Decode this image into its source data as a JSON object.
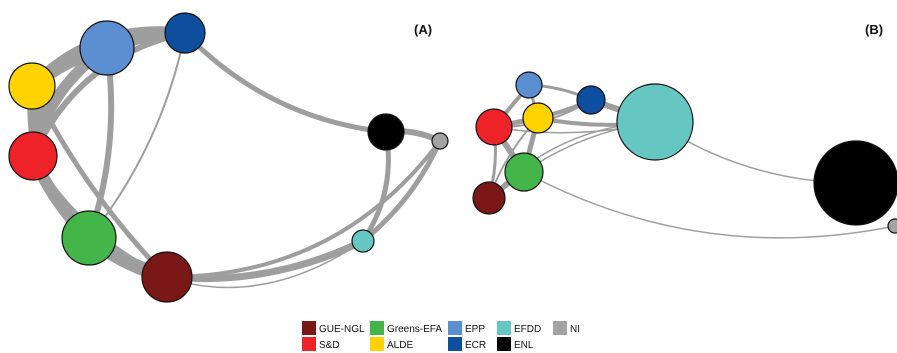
{
  "panels": [
    {
      "id": "A",
      "label": "(A)"
    },
    {
      "id": "B",
      "label": "(B)"
    }
  ],
  "groups": [
    {
      "key": "gue",
      "name": "GUE-NGL",
      "color": "#7a1717"
    },
    {
      "key": "sd",
      "name": "S&D",
      "color": "#ee2229"
    },
    {
      "key": "greens",
      "name": "Greens-EFA",
      "color": "#44b549"
    },
    {
      "key": "alde",
      "name": "ALDE",
      "color": "#ffd300"
    },
    {
      "key": "epp",
      "name": "EPP",
      "color": "#5b8fd1"
    },
    {
      "key": "ecr",
      "name": "ECR",
      "color": "#0d4f9e"
    },
    {
      "key": "efdd",
      "name": "EFDD",
      "color": "#66c6c1"
    },
    {
      "key": "enl",
      "name": "ENL",
      "color": "#000000"
    },
    {
      "key": "ni",
      "name": "NI",
      "color": "#a3a3a3"
    }
  ]
}
